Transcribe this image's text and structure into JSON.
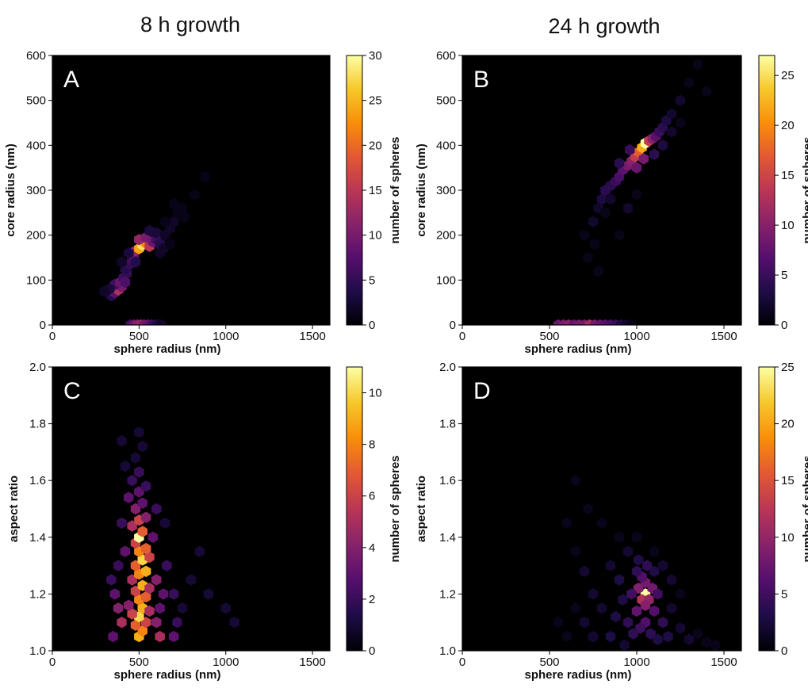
{
  "column_titles": [
    "8 h growth",
    "24 h growth"
  ],
  "colormap": {
    "name": "inferno",
    "stops": [
      "#000004",
      "#1f0c48",
      "#550f6d",
      "#88226a",
      "#ba3655",
      "#e35933",
      "#f98e09",
      "#f6c82a",
      "#fcffa4"
    ]
  },
  "chart_data": [
    {
      "type": "heatmap",
      "panel": "A",
      "xlabel": "sphere radius (nm)",
      "ylabel": "core radius (nm)",
      "xlim": [
        0,
        1600
      ],
      "ylim": [
        0,
        600
      ],
      "xticks": [
        0,
        500,
        1000,
        1500
      ],
      "yticks": [
        0,
        100,
        200,
        300,
        400,
        500,
        600
      ],
      "colorbar": {
        "label": "number of spheres",
        "min": 0,
        "max": 30,
        "ticks": [
          0,
          5,
          10,
          15,
          20,
          25,
          30
        ]
      },
      "cells": [
        [
          340,
          65,
          4
        ],
        [
          360,
          72,
          8
        ],
        [
          380,
          78,
          14
        ],
        [
          400,
          85,
          10
        ],
        [
          360,
          90,
          6
        ],
        [
          390,
          95,
          9
        ],
        [
          330,
          80,
          3
        ],
        [
          300,
          75,
          2
        ],
        [
          410,
          105,
          6
        ],
        [
          430,
          115,
          5
        ],
        [
          420,
          125,
          4
        ],
        [
          445,
          135,
          5
        ],
        [
          460,
          145,
          6
        ],
        [
          470,
          155,
          8
        ],
        [
          480,
          165,
          12
        ],
        [
          500,
          170,
          24
        ],
        [
          520,
          178,
          28
        ],
        [
          540,
          182,
          22
        ],
        [
          560,
          175,
          15
        ],
        [
          500,
          190,
          12
        ],
        [
          540,
          195,
          10
        ],
        [
          580,
          185,
          9
        ],
        [
          600,
          190,
          6
        ],
        [
          620,
          180,
          4
        ],
        [
          600,
          205,
          3
        ],
        [
          560,
          210,
          3
        ],
        [
          650,
          200,
          2
        ],
        [
          680,
          215,
          2
        ],
        [
          700,
          230,
          2
        ],
        [
          720,
          250,
          1
        ],
        [
          750,
          260,
          1
        ],
        [
          640,
          170,
          2
        ],
        [
          680,
          180,
          1
        ],
        [
          480,
          140,
          4
        ],
        [
          440,
          160,
          3
        ],
        [
          400,
          140,
          2
        ],
        [
          700,
          270,
          1
        ],
        [
          760,
          240,
          1
        ],
        [
          820,
          290,
          1
        ],
        [
          880,
          330,
          1
        ],
        [
          650,
          230,
          1
        ],
        [
          620,
          160,
          2
        ],
        [
          420,
          95,
          7
        ],
        [
          450,
          0,
          6
        ],
        [
          470,
          0,
          9
        ],
        [
          490,
          0,
          11
        ],
        [
          510,
          0,
          12
        ],
        [
          530,
          0,
          10
        ],
        [
          550,
          0,
          9
        ],
        [
          570,
          0,
          7
        ],
        [
          590,
          0,
          5
        ],
        [
          610,
          0,
          3
        ],
        [
          630,
          0,
          2
        ]
      ]
    },
    {
      "type": "heatmap",
      "panel": "B",
      "xlabel": "sphere radius (nm)",
      "ylabel": "core radius (nm)",
      "xlim": [
        0,
        1600
      ],
      "ylim": [
        0,
        600
      ],
      "xticks": [
        0,
        500,
        1000,
        1500
      ],
      "yticks": [
        0,
        100,
        200,
        300,
        400,
        500,
        600
      ],
      "colorbar": {
        "label": "number of spheres",
        "min": 0,
        "max": 27,
        "ticks": [
          0,
          5,
          10,
          15,
          20,
          25
        ]
      },
      "cells": [
        [
          700,
          200,
          1
        ],
        [
          750,
          230,
          2
        ],
        [
          780,
          260,
          2
        ],
        [
          800,
          280,
          3
        ],
        [
          820,
          300,
          4
        ],
        [
          850,
          310,
          4
        ],
        [
          880,
          320,
          5
        ],
        [
          900,
          330,
          6
        ],
        [
          920,
          345,
          7
        ],
        [
          950,
          355,
          9
        ],
        [
          970,
          365,
          10
        ],
        [
          990,
          375,
          14
        ],
        [
          1010,
          385,
          17
        ],
        [
          1030,
          395,
          22
        ],
        [
          1050,
          405,
          27
        ],
        [
          1070,
          410,
          14
        ],
        [
          1090,
          415,
          10
        ],
        [
          1110,
          420,
          7
        ],
        [
          1130,
          430,
          5
        ],
        [
          1150,
          440,
          4
        ],
        [
          1170,
          455,
          3
        ],
        [
          1200,
          470,
          2
        ],
        [
          1250,
          500,
          2
        ],
        [
          1300,
          540,
          1
        ],
        [
          1350,
          580,
          1
        ],
        [
          1000,
          350,
          8
        ],
        [
          960,
          390,
          5
        ],
        [
          1040,
          370,
          9
        ],
        [
          900,
          360,
          4
        ],
        [
          850,
          280,
          2
        ],
        [
          820,
          250,
          1
        ],
        [
          760,
          180,
          1
        ],
        [
          1100,
          380,
          4
        ],
        [
          1150,
          400,
          3
        ],
        [
          1200,
          430,
          2
        ],
        [
          720,
          150,
          1
        ],
        [
          780,
          120,
          1
        ],
        [
          900,
          200,
          1
        ],
        [
          950,
          260,
          2
        ],
        [
          1000,
          290,
          1
        ],
        [
          1250,
          450,
          1
        ],
        [
          1400,
          520,
          1
        ],
        [
          550,
          0,
          8
        ],
        [
          580,
          0,
          9
        ],
        [
          610,
          0,
          10
        ],
        [
          640,
          0,
          8
        ],
        [
          670,
          0,
          9
        ],
        [
          700,
          0,
          9
        ],
        [
          730,
          0,
          12
        ],
        [
          760,
          0,
          9
        ],
        [
          790,
          0,
          8
        ],
        [
          820,
          0,
          7
        ],
        [
          850,
          0,
          6
        ],
        [
          880,
          0,
          5
        ],
        [
          910,
          0,
          3
        ],
        [
          940,
          0,
          2
        ],
        [
          970,
          0,
          1
        ]
      ]
    },
    {
      "type": "heatmap",
      "panel": "C",
      "xlabel": "sphere radius (nm)",
      "ylabel": "aspect ratio",
      "xlim": [
        0,
        1600
      ],
      "ylim": [
        1.0,
        2.0
      ],
      "xticks": [
        0,
        500,
        1000,
        1500
      ],
      "yticks": [
        1.0,
        1.2,
        1.4,
        1.6,
        1.8,
        2.0
      ],
      "colorbar": {
        "label": "number of spheres",
        "min": 0,
        "max": 11,
        "ticks": [
          0,
          2,
          4,
          6,
          8,
          10
        ]
      },
      "cells": [
        [
          500,
          1.05,
          9
        ],
        [
          520,
          1.07,
          8
        ],
        [
          480,
          1.09,
          7
        ],
        [
          540,
          1.1,
          6
        ],
        [
          500,
          1.12,
          10
        ],
        [
          460,
          1.13,
          6
        ],
        [
          520,
          1.15,
          9
        ],
        [
          560,
          1.14,
          5
        ],
        [
          440,
          1.16,
          4
        ],
        [
          500,
          1.18,
          8
        ],
        [
          540,
          1.19,
          7
        ],
        [
          480,
          1.21,
          6
        ],
        [
          520,
          1.23,
          9
        ],
        [
          560,
          1.22,
          5
        ],
        [
          460,
          1.25,
          5
        ],
        [
          500,
          1.27,
          8
        ],
        [
          540,
          1.28,
          9
        ],
        [
          480,
          1.3,
          7
        ],
        [
          520,
          1.32,
          10
        ],
        [
          560,
          1.33,
          6
        ],
        [
          500,
          1.35,
          8
        ],
        [
          540,
          1.36,
          7
        ],
        [
          480,
          1.38,
          6
        ],
        [
          500,
          1.4,
          11
        ],
        [
          520,
          1.42,
          7
        ],
        [
          460,
          1.44,
          5
        ],
        [
          500,
          1.46,
          6
        ],
        [
          540,
          1.47,
          4
        ],
        [
          480,
          1.5,
          4
        ],
        [
          520,
          1.52,
          3
        ],
        [
          440,
          1.54,
          3
        ],
        [
          500,
          1.56,
          3
        ],
        [
          540,
          1.58,
          2
        ],
        [
          460,
          1.6,
          2
        ],
        [
          500,
          1.63,
          2
        ],
        [
          420,
          1.65,
          1
        ],
        [
          480,
          1.68,
          1
        ],
        [
          520,
          1.72,
          1
        ],
        [
          400,
          1.74,
          1
        ],
        [
          500,
          1.77,
          1
        ],
        [
          400,
          1.1,
          5
        ],
        [
          380,
          1.15,
          4
        ],
        [
          360,
          1.2,
          3
        ],
        [
          340,
          1.25,
          2
        ],
        [
          600,
          1.1,
          4
        ],
        [
          620,
          1.15,
          3
        ],
        [
          640,
          1.2,
          3
        ],
        [
          600,
          1.25,
          4
        ],
        [
          660,
          1.3,
          2
        ],
        [
          700,
          1.2,
          2
        ],
        [
          720,
          1.1,
          2
        ],
        [
          750,
          1.15,
          1
        ],
        [
          800,
          1.25,
          1
        ],
        [
          850,
          1.35,
          1
        ],
        [
          900,
          1.2,
          1
        ],
        [
          1000,
          1.15,
          1
        ],
        [
          1050,
          1.1,
          1
        ],
        [
          350,
          1.05,
          3
        ],
        [
          620,
          1.05,
          5
        ],
        [
          580,
          1.4,
          3
        ],
        [
          420,
          1.35,
          3
        ],
        [
          400,
          1.45,
          2
        ],
        [
          600,
          1.5,
          2
        ],
        [
          700,
          1.05,
          3
        ],
        [
          380,
          1.3,
          2
        ],
        [
          650,
          1.45,
          1
        ]
      ]
    },
    {
      "type": "heatmap",
      "panel": "D",
      "xlabel": "sphere radius (nm)",
      "ylabel": "aspect ratio",
      "xlim": [
        0,
        1600
      ],
      "ylim": [
        1.0,
        2.0
      ],
      "xticks": [
        0,
        500,
        1000,
        1500
      ],
      "yticks": [
        1.0,
        1.2,
        1.4,
        1.6,
        1.8,
        2.0
      ],
      "colorbar": {
        "label": "number of spheres",
        "min": 0,
        "max": 25,
        "ticks": [
          0,
          5,
          10,
          15,
          20,
          25
        ]
      },
      "cells": [
        [
          1050,
          1.2,
          25
        ],
        [
          1030,
          1.18,
          12
        ],
        [
          1070,
          1.18,
          10
        ],
        [
          1050,
          1.16,
          9
        ],
        [
          1010,
          1.22,
          9
        ],
        [
          1090,
          1.22,
          8
        ],
        [
          1050,
          1.24,
          8
        ],
        [
          1030,
          1.26,
          6
        ],
        [
          1000,
          1.14,
          7
        ],
        [
          1100,
          1.14,
          6
        ],
        [
          970,
          1.2,
          5
        ],
        [
          1120,
          1.2,
          5
        ],
        [
          1050,
          1.1,
          6
        ],
        [
          1020,
          1.08,
          5
        ],
        [
          1080,
          1.06,
          4
        ],
        [
          1000,
          1.28,
          4
        ],
        [
          1100,
          1.28,
          3
        ],
        [
          950,
          1.1,
          4
        ],
        [
          920,
          1.18,
          3
        ],
        [
          900,
          1.25,
          3
        ],
        [
          880,
          1.12,
          3
        ],
        [
          850,
          1.05,
          3
        ],
        [
          1150,
          1.1,
          4
        ],
        [
          1180,
          1.05,
          3
        ],
        [
          1200,
          1.15,
          2
        ],
        [
          1250,
          1.08,
          2
        ],
        [
          1300,
          1.04,
          2
        ],
        [
          1350,
          1.06,
          1
        ],
        [
          1400,
          1.03,
          1
        ],
        [
          1450,
          1.02,
          1
        ],
        [
          800,
          1.15,
          2
        ],
        [
          750,
          1.2,
          2
        ],
        [
          700,
          1.28,
          2
        ],
        [
          650,
          1.35,
          1
        ],
        [
          600,
          1.45,
          1
        ],
        [
          750,
          1.05,
          2
        ],
        [
          700,
          1.1,
          2
        ],
        [
          650,
          1.15,
          1
        ],
        [
          600,
          1.05,
          1
        ],
        [
          550,
          1.1,
          1
        ],
        [
          850,
          1.3,
          2
        ],
        [
          950,
          1.35,
          2
        ],
        [
          1000,
          1.4,
          1
        ],
        [
          1100,
          1.35,
          1
        ],
        [
          900,
          1.4,
          1
        ],
        [
          800,
          1.45,
          1
        ],
        [
          720,
          1.5,
          1
        ],
        [
          650,
          1.6,
          1
        ],
        [
          1150,
          1.3,
          2
        ],
        [
          1200,
          1.25,
          2
        ],
        [
          1250,
          1.2,
          1
        ],
        [
          980,
          1.06,
          4
        ],
        [
          1120,
          1.04,
          3
        ],
        [
          930,
          1.02,
          2
        ],
        [
          1060,
          1.3,
          4
        ],
        [
          1010,
          1.32,
          3
        ]
      ]
    }
  ]
}
